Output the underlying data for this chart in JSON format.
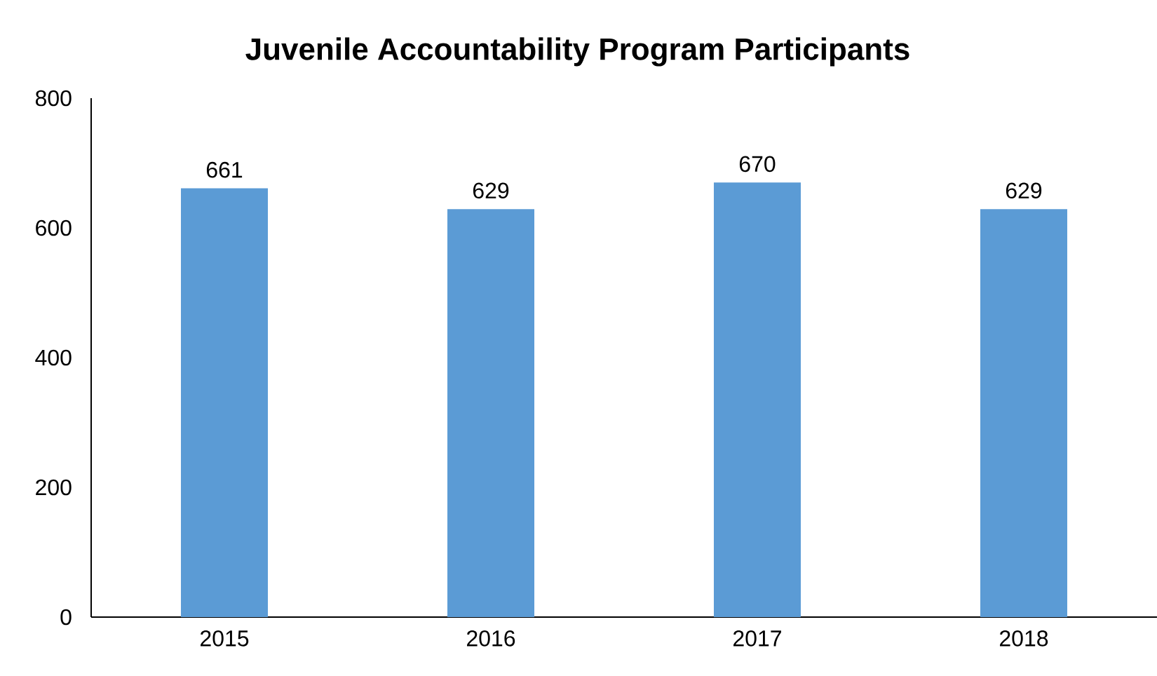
{
  "chart_data": {
    "type": "bar",
    "title": "Juvenile Accountability Program Participants",
    "categories": [
      "2015",
      "2016",
      "2017",
      "2018"
    ],
    "values": [
      661,
      629,
      670,
      629
    ],
    "color": "#5b9bd5",
    "ylim": [
      0,
      800
    ],
    "yticks": [
      0,
      200,
      400,
      600,
      800
    ],
    "data_labels": true,
    "grid": false
  }
}
